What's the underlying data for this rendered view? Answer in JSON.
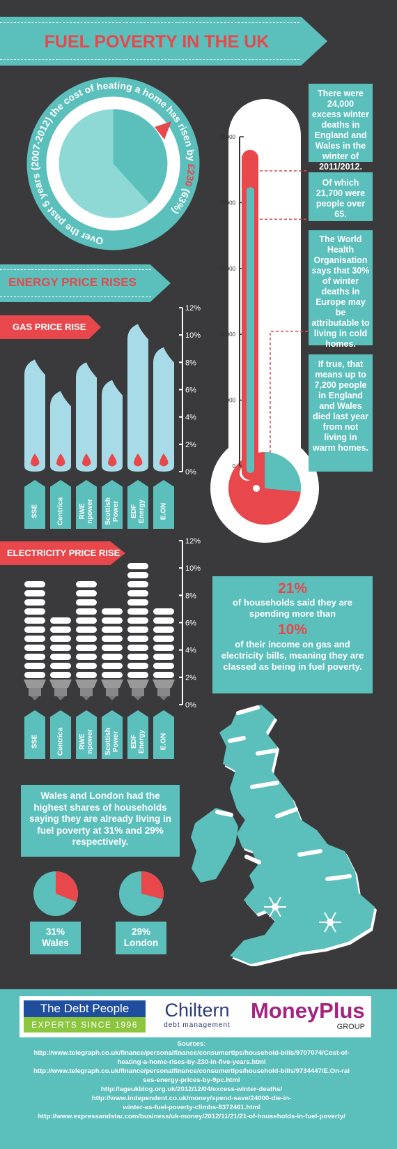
{
  "title": "FUEL POVERTY IN THE UK",
  "circle_text": "Over the past 5 years (2007-2012) the cost of heating a home has risen by £230 (63%)",
  "circle_text_part1": "Over the past 5 years (2007-2012) the cost of heating a home has risen by ",
  "circle_text_highlight": "£230",
  "circle_text_part2": " (63%)",
  "section_energy": "ENERGY PRICE RISES",
  "gas_tag": "GAS PRICE RISE",
  "electricity_tag": "ELECTRICITY PRICE RISE",
  "colors": {
    "teal": "#5bbfbc",
    "red": "#e8474b",
    "background": "#3a3a3c",
    "light_blue": "#a8dbe8"
  },
  "chart_data": [
    {
      "type": "bar",
      "title": "GAS PRICE RISE",
      "categories": [
        "SSE",
        "Centrica",
        "RWE npower",
        "Scottish Power",
        "EDF Energy",
        "E.ON"
      ],
      "values": [
        8.2,
        5.9,
        8.0,
        6.7,
        10.8,
        9.1
      ],
      "y_ticks": [
        "12%",
        "10%",
        "8%",
        "6%",
        "4%",
        "2%",
        "0%"
      ],
      "ylim": [
        0,
        12
      ]
    },
    {
      "type": "bar",
      "title": "ELECTRICITY PRICE RISE",
      "categories": [
        "SSE",
        "Centrica",
        "RWE npower",
        "Scottish Power",
        "EDF Energy",
        "E.ON"
      ],
      "values": [
        9.0,
        6.0,
        9.1,
        6.9,
        10.5,
        7.2
      ],
      "y_ticks": [
        "12%",
        "10%",
        "8%",
        "6%",
        "4%",
        "2%",
        "0%"
      ],
      "ylim": [
        0,
        12
      ]
    },
    {
      "type": "bar",
      "title": "",
      "categories": [
        "Excess winter deaths",
        "People over 65"
      ],
      "values": [
        24000,
        21700
      ],
      "y_ticks": [
        "25000",
        "20000",
        "15000",
        "10000",
        "5000",
        "0"
      ],
      "ylim": [
        0,
        25000
      ]
    }
  ],
  "categories_display": [
    "SSE",
    "Centrica",
    "RWE\nnpower",
    "Scottish\nPower",
    "EDF\nEnergy",
    "E.ON"
  ],
  "thermo_boxes": [
    "There were 24,000 excess winter deaths in England and Wales in the winter of 2011/2012.",
    "Of which 21,700 were people over 65.",
    "The World Health Organisation says that 30% of winter deaths in Europe may be attributable to living in cold homes.",
    "If true, that means up to 7,200 people in England and Wales died last year from not living in warm homes."
  ],
  "stat": {
    "pct1": "21%",
    "line1": "of households said they are spending more than",
    "pct2": "10%",
    "line2": "of their income on gas and electricity bills, meaning they are classed as being in fuel poverty."
  },
  "wales_london_text": "Wales and London had the highest shares of households saying they are already living in fuel poverty at 31% and 29% respectively.",
  "pies": [
    {
      "pct": "31%",
      "name": "Wales",
      "value": 31
    },
    {
      "pct": "29%",
      "name": "London",
      "value": 29
    }
  ],
  "logos": {
    "debt_people": "The Debt People",
    "experts": "EXPERTS SINCE 1996",
    "chiltern": "Chiltern",
    "chiltern_sub": "debt management",
    "moneyplus": "MoneyPlus",
    "group": "GROUP"
  },
  "sources_title": "Sources:",
  "sources": [
    "http://www.telegraph.co.uk/finance/personalfinance/consumertips/household-bills/9707074/Cost-of-\nheating-a-home-rises-by-230-in-five-years.html",
    "http://www.telegraph.co.uk/finance/personalfinance/consumertips/household-bills/9734447/E.On-rai\nses-energy-prices-by-9pc.html",
    "http://ageukblog.org.uk/2012/12/04/excess-winter-deaths/",
    "http://www.independent.co.uk/money/spend-save/24000-die-in-\nwinter-as-fuel-poverty-climbs-8372461.html",
    "http://www.expressandstar.com/business/uk-money/2012/11/21/21-of-households-in-fuel-poverty/"
  ]
}
